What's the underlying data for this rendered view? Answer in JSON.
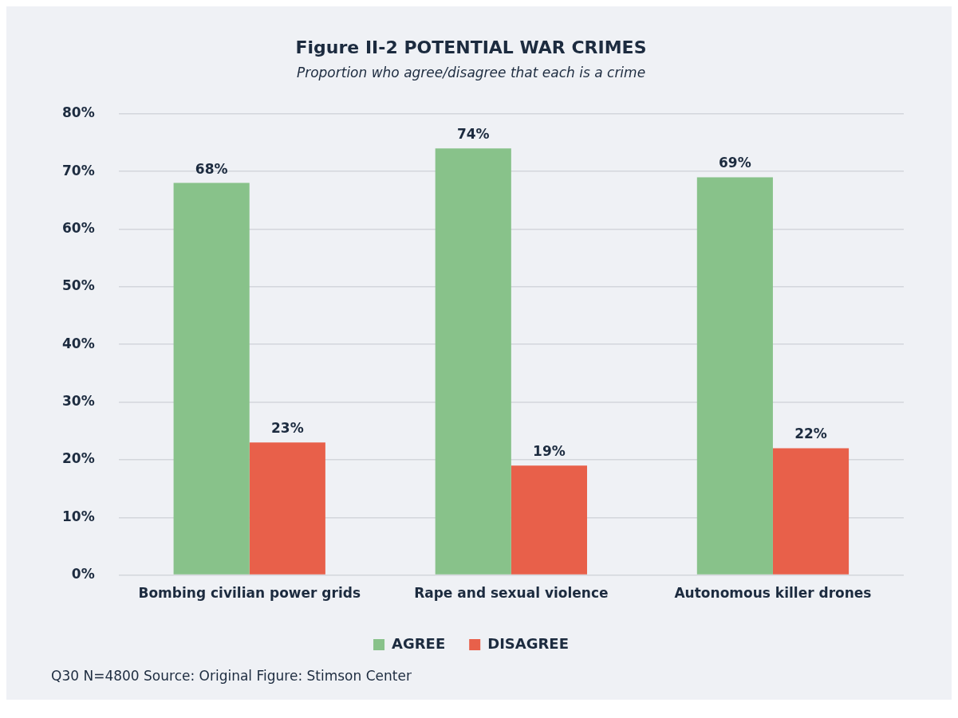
{
  "chart_data": {
    "type": "bar",
    "title": "Figure II-2 POTENTIAL WAR CRIMES",
    "subtitle": "Proportion who agree/disagree that each is a crime",
    "categories": [
      "Bombing civilian power grids",
      "Rape and sexual violence",
      "Autonomous killer drones"
    ],
    "series": [
      {
        "name": "AGREE",
        "color": "#88c28a",
        "values": [
          68,
          74,
          69
        ],
        "value_labels": [
          "68%",
          "74%",
          "69%"
        ]
      },
      {
        "name": "DISAGREE",
        "color": "#e8604a",
        "values": [
          23,
          19,
          22
        ],
        "value_labels": [
          "23%",
          "19%",
          "22%"
        ]
      }
    ],
    "ylim": [
      0,
      80
    ],
    "yticks": [
      {
        "value": 0,
        "label": "0%"
      },
      {
        "value": 10,
        "label": "10%"
      },
      {
        "value": 20,
        "label": "20%"
      },
      {
        "value": 30,
        "label": "30%"
      },
      {
        "value": 40,
        "label": "40%"
      },
      {
        "value": 50,
        "label": "50%"
      },
      {
        "value": 60,
        "label": "60%"
      },
      {
        "value": 70,
        "label": "70%"
      },
      {
        "value": 80,
        "label": "80%"
      }
    ],
    "grid": "y",
    "legend": "bottom",
    "annotations": [
      "Q30 N=4800 Source: Original Figure: Stimson Center"
    ]
  }
}
